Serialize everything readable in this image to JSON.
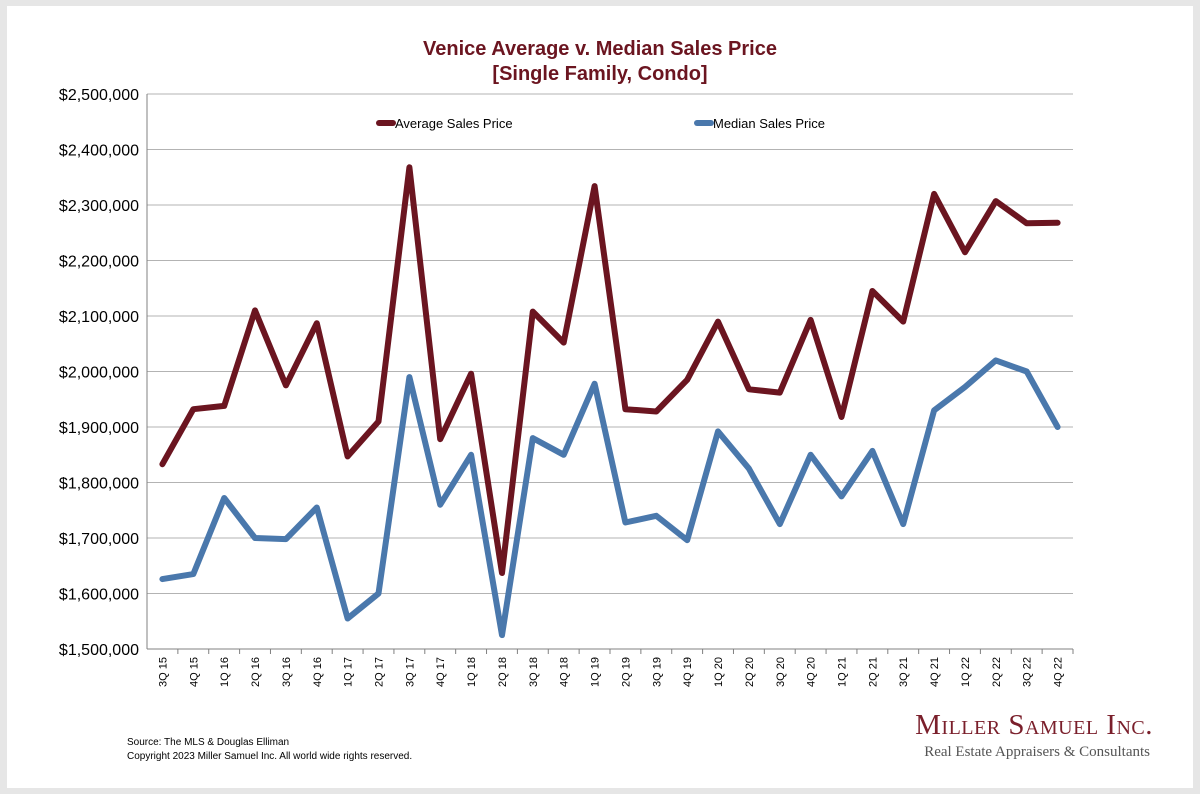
{
  "chart_data": {
    "type": "line",
    "title": "Venice Average v. Median Sales Price",
    "subtitle": "[Single Family, Condo]",
    "categories": [
      "3Q 15",
      "4Q 15",
      "1Q 16",
      "2Q 16",
      "3Q 16",
      "4Q 16",
      "1Q 17",
      "2Q 17",
      "3Q 17",
      "4Q 17",
      "1Q 18",
      "2Q 18",
      "3Q 18",
      "4Q 18",
      "1Q 19",
      "2Q 19",
      "3Q 19",
      "4Q 19",
      "1Q 20",
      "2Q 20",
      "3Q 20",
      "4Q 20",
      "1Q 21",
      "2Q 21",
      "3Q 21",
      "4Q 21",
      "1Q 22",
      "2Q 22",
      "3Q 22",
      "4Q 22"
    ],
    "series": [
      {
        "name": "Average Sales Price",
        "color": "#6b1520",
        "values": [
          1833000,
          1932000,
          1938000,
          2110000,
          1975000,
          2087000,
          1847000,
          1910000,
          2368000,
          1878000,
          1996000,
          1637000,
          2108000,
          2052000,
          2334000,
          1932000,
          1928000,
          1985000,
          2090000,
          1968000,
          1962000,
          2093000,
          1918000,
          2145000,
          2090000,
          2320000,
          2215000,
          2307000,
          2267000,
          2268000
        ]
      },
      {
        "name": "Median Sales Price",
        "color": "#4a78ac",
        "values": [
          1626000,
          1635000,
          1772000,
          1700000,
          1698000,
          1755000,
          1555000,
          1600000,
          1990000,
          1760000,
          1850000,
          1525000,
          1880000,
          1850000,
          1978000,
          1728000,
          1740000,
          1696000,
          1892000,
          1825000,
          1725000,
          1850000,
          1775000,
          1857000,
          1725000,
          1930000,
          1972000,
          2020000,
          2000000,
          1900000
        ]
      }
    ],
    "ylim": [
      1500000,
      2500000
    ],
    "ytick_labels": [
      "$1,500,000",
      "$1,600,000",
      "$1,700,000",
      "$1,800,000",
      "$1,900,000",
      "$2,000,000",
      "$2,100,000",
      "$2,200,000",
      "$2,300,000",
      "$2,400,000",
      "$2,500,000"
    ],
    "xlabel": "",
    "ylabel": "",
    "grid": true,
    "legend_position": "top"
  },
  "footer": {
    "source": "Source: The MLS & Douglas Elliman",
    "copyright": "Copyright 2023 Miller Samuel Inc.  All world wide rights reserved."
  },
  "brand": {
    "name": "Miller Samuel Inc.",
    "tagline": "Real Estate Appraisers & Consultants"
  }
}
